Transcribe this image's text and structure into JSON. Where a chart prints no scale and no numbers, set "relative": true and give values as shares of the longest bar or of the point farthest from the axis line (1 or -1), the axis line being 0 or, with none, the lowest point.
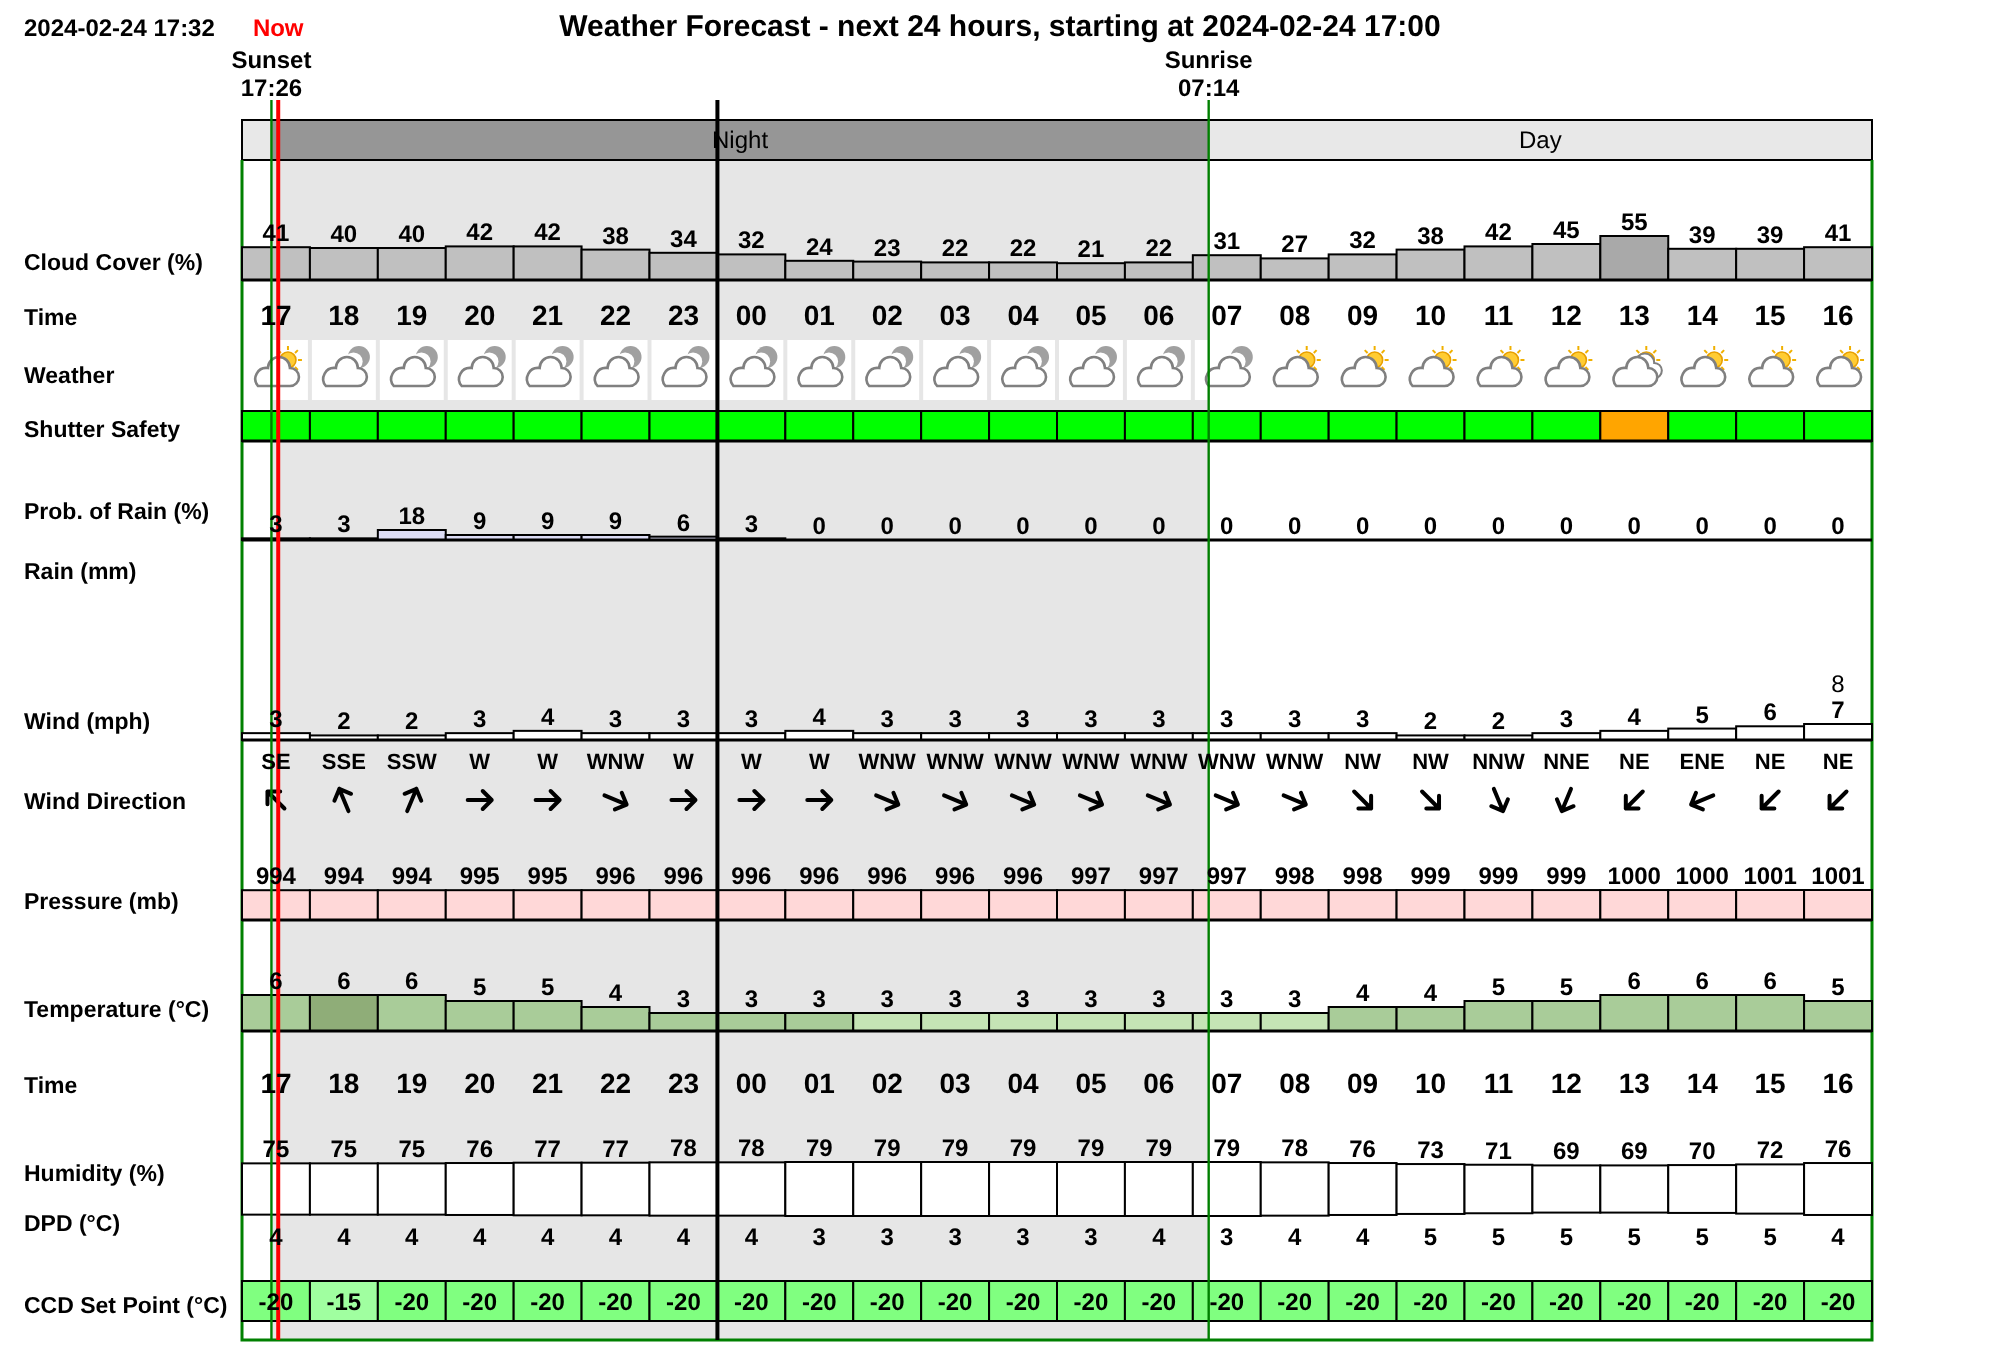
{
  "chart_data": [
    {
      "type": "bar",
      "title": "Weather Forecast - next 24 hours, starting at 2024-02-24 17:00",
      "annotations": [
        "2024-02-24 17:32",
        "Day",
        "Time"
      ],
      "ylabel": "Cloud Cover (%)",
      "x": [
        "2024-02-24T17:30",
        "2024-02-24T18:30",
        "2024-02-24T19:30",
        "2024-02-24T20:30",
        "2024-02-24T21:30",
        "2024-02-24T22:30",
        "2024-02-24T23:30",
        "2024-02-25T00:30",
        "2024-02-25T01:30",
        "2024-02-25T02:30",
        "2024-02-25T03:30",
        "2024-02-25T04:30",
        "2024-02-25T05:30",
        "2024-02-25T06:30",
        "2024-02-25T07:30",
        "2024-02-25T08:30",
        "2024-02-25T09:30",
        "2024-02-25T10:30",
        "2024-02-25T11:30",
        "2024-02-25T12:30",
        "2024-02-25T13:30",
        "2024-02-25T14:30",
        "2024-02-25T15:30",
        "2024-02-25T16:30"
      ],
      "xlim": [
        "2024-02-24T17:00",
        "2024-02-25T17:00"
      ],
      "xticks": [
        {
          "value": "2024-02-24T17:30",
          "label": "17"
        },
        {
          "value": "2024-02-24T18:30",
          "label": "18"
        },
        {
          "value": "2024-02-24T19:30",
          "label": "19"
        },
        {
          "value": "2024-02-24T20:30",
          "label": "20"
        },
        {
          "value": "2024-02-24T21:30",
          "label": "21"
        },
        {
          "value": "2024-02-24T22:30",
          "label": "22"
        },
        {
          "value": "2024-02-24T23:30",
          "label": "23"
        },
        {
          "value": "2024-02-25T00:30",
          "label": "00"
        },
        {
          "value": "2024-02-25T01:30",
          "label": "01"
        },
        {
          "value": "2024-02-25T02:30",
          "label": "02"
        },
        {
          "value": "2024-02-25T03:30",
          "label": "03"
        },
        {
          "value": "2024-02-25T04:30",
          "label": "04"
        },
        {
          "value": "2024-02-25T05:30",
          "label": "05"
        },
        {
          "value": "2024-02-25T06:30",
          "label": "06"
        },
        {
          "value": "2024-02-25T07:30",
          "label": "07"
        },
        {
          "value": "2024-02-25T08:30",
          "label": "08"
        },
        {
          "value": "2024-02-25T09:30",
          "label": "09"
        },
        {
          "value": "2024-02-25T10:30",
          "label": "10"
        },
        {
          "value": "2024-02-25T11:30",
          "label": "11"
        },
        {
          "value": "2024-02-25T12:30",
          "label": "12"
        },
        {
          "value": "2024-02-25T13:30",
          "label": "13"
        },
        {
          "value": "2024-02-25T14:30",
          "label": "14"
        },
        {
          "value": "2024-02-25T15:30",
          "label": "15"
        },
        {
          "value": "2024-02-25T16:30",
          "label": "16"
        }
      ],
      "tick_labels": "x",
      "values": [
        41,
        40,
        40,
        42,
        42,
        38,
        34,
        32,
        24,
        23,
        22,
        22,
        21,
        22,
        31,
        27,
        32,
        38,
        42,
        45,
        55,
        39,
        39,
        41
      ],
      "colors": [
        "#c0c0c0",
        "#c0c0c0",
        "#c0c0c0",
        "#c0c0c0",
        "#c0c0c0",
        "#c0c0c0",
        "#c0c0c0",
        "#c0c0c0",
        "#c0c0c0",
        "#c0c0c0",
        "#c0c0c0",
        "#c0c0c0",
        "#c0c0c0",
        "#c0c0c0",
        "#c0c0c0",
        "#c0c0c0",
        "#c0c0c0",
        "#c0c0c0",
        "#c0c0c0",
        "#c0c0c0",
        "#a9a9a9",
        "#c0c0c0",
        "#c0c0c0",
        "#c0c0c0"
      ],
      "data_labels": true,
      "bands": [
        {
          "axis": "x",
          "from": "2024-02-24T17:26",
          "to": "2024-02-25T07:14",
          "label": "Night",
          "color": "#e6e6e6"
        }
      ],
      "ref_lines": [
        {
          "axis": "x",
          "value": "2024-02-24T17:26",
          "label": "Sunset 17:26",
          "color": "#008000"
        },
        {
          "axis": "x",
          "value": "2024-02-25T00:00",
          "color": "#000000"
        },
        {
          "axis": "x",
          "value": "2024-02-25T07:14",
          "label": "Sunrise 07:14",
          "color": "#008000"
        },
        {
          "axis": "x",
          "value": "2024-02-24T17:32",
          "label": "Now",
          "color": "#ff0000"
        }
      ]
    },
    {
      "type": "other",
      "ylabel": "Weather",
      "categories": [
        null,
        null,
        null,
        null,
        null,
        null,
        null,
        null,
        null,
        null,
        null,
        null,
        null,
        null,
        null,
        null,
        null,
        null,
        null,
        null,
        null,
        null,
        null,
        null
      ]
    },
    {
      "type": "bar",
      "ylabel": "Shutter Safety",
      "relative": true,
      "categories": [
        null,
        null,
        null,
        null,
        null,
        null,
        null,
        null,
        null,
        null,
        null,
        null,
        null,
        null,
        null,
        null,
        null,
        null,
        null,
        null,
        null,
        null,
        null,
        null
      ],
      "tick_labels": false,
      "values": [
        1,
        1,
        1,
        1,
        1,
        1,
        1,
        1,
        1,
        1,
        1,
        1,
        1,
        1,
        1,
        1,
        1,
        1,
        1,
        1,
        1,
        1,
        1,
        1
      ],
      "colors": [
        "#00ff00",
        "#00ff00",
        "#00ff00",
        "#00ff00",
        "#00ff00",
        "#00ff00",
        "#00ff00",
        "#00ff00",
        "#00ff00",
        "#00ff00",
        "#00ff00",
        "#00ff00",
        "#00ff00",
        "#00ff00",
        "#00ff00",
        "#00ff00",
        "#00ff00",
        "#00ff00",
        "#00ff00",
        "#00ff00",
        "#ffa500",
        "#00ff00",
        "#00ff00",
        "#00ff00"
      ]
    },
    {
      "type": "bar",
      "ylabel": "Prob. of Rain (%)",
      "categories": [
        null,
        null,
        null,
        null,
        null,
        null,
        null,
        null,
        null,
        null,
        null,
        null,
        null,
        null,
        null,
        null,
        null,
        null,
        null,
        null,
        null,
        null,
        null,
        null
      ],
      "tick_labels": false,
      "values": [
        3,
        3,
        18,
        9,
        9,
        9,
        6,
        3,
        0,
        0,
        0,
        0,
        0,
        0,
        0,
        0,
        0,
        0,
        0,
        0,
        0,
        0,
        0,
        0
      ],
      "color": "#dcdcf5",
      "data_labels": true
    },
    {
      "type": "other",
      "ylabel": "Rain (mm)"
    },
    {
      "type": "bar",
      "ylabel": "Wind (mph)",
      "annotations": [
        "8"
      ],
      "categories": [
        null,
        null,
        null,
        null,
        null,
        null,
        null,
        null,
        null,
        null,
        null,
        null,
        null,
        null,
        null,
        null,
        null,
        null,
        null,
        null,
        null,
        null,
        null,
        null
      ],
      "tick_labels": false,
      "values": [
        3,
        2,
        2,
        3,
        4,
        3,
        3,
        3,
        4,
        3,
        3,
        3,
        3,
        3,
        3,
        3,
        3,
        2,
        2,
        3,
        4,
        5,
        6,
        7
      ],
      "color": "#ffffff",
      "data_labels": true
    },
    {
      "type": "other",
      "ylabel": "Wind Direction",
      "categories": [
        null,
        null,
        null,
        null,
        null,
        null,
        null,
        null,
        null,
        null,
        null,
        null,
        null,
        null,
        null,
        null,
        null,
        null,
        null,
        null,
        null,
        null,
        null,
        null
      ],
      "values": [
        135,
        157.5,
        202.5,
        270,
        270,
        292.5,
        270,
        270,
        270,
        292.5,
        292.5,
        292.5,
        292.5,
        292.5,
        292.5,
        292.5,
        315,
        315,
        337.5,
        22.5,
        45,
        67.5,
        45,
        45
      ],
      "value_labels": [
        "SE",
        "SSE",
        "SSW",
        "W",
        "W",
        "WNW",
        "W",
        "W",
        "W",
        "WNW",
        "WNW",
        "WNW",
        "WNW",
        "WNW",
        "WNW",
        "WNW",
        "NW",
        "NW",
        "NNW",
        "NNE",
        "NE",
        "ENE",
        "NE",
        "NE"
      ]
    },
    {
      "type": "bar",
      "ylabel": "Pressure (mb)",
      "categories": [
        null,
        null,
        null,
        null,
        null,
        null,
        null,
        null,
        null,
        null,
        null,
        null,
        null,
        null,
        null,
        null,
        null,
        null,
        null,
        null,
        null,
        null,
        null,
        null
      ],
      "tick_labels": false,
      "values": [
        994,
        994,
        994,
        995,
        995,
        996,
        996,
        996,
        996,
        996,
        996,
        996,
        997,
        997,
        997,
        998,
        998,
        999,
        999,
        999,
        1000,
        1000,
        1001,
        1001
      ],
      "color": "#ffd8d8",
      "data_labels": true
    },
    {
      "type": "bar",
      "ylabel": "Temperature (°C)",
      "annotations": [
        "Time"
      ],
      "x": [
        "2024-02-24T17:30",
        "2024-02-24T18:30",
        "2024-02-24T19:30",
        "2024-02-24T20:30",
        "2024-02-24T21:30",
        "2024-02-24T22:30",
        "2024-02-24T23:30",
        "2024-02-25T00:30",
        "2024-02-25T01:30",
        "2024-02-25T02:30",
        "2024-02-25T03:30",
        "2024-02-25T04:30",
        "2024-02-25T05:30",
        "2024-02-25T06:30",
        "2024-02-25T07:30",
        "2024-02-25T08:30",
        "2024-02-25T09:30",
        "2024-02-25T10:30",
        "2024-02-25T11:30",
        "2024-02-25T12:30",
        "2024-02-25T13:30",
        "2024-02-25T14:30",
        "2024-02-25T15:30",
        "2024-02-25T16:30"
      ],
      "xlim": [
        "2024-02-24T17:00",
        "2024-02-25T17:00"
      ],
      "xticks": [
        {
          "value": "2024-02-24T17:30",
          "label": "17"
        },
        {
          "value": "2024-02-24T18:30",
          "label": "18"
        },
        {
          "value": "2024-02-24T19:30",
          "label": "19"
        },
        {
          "value": "2024-02-24T20:30",
          "label": "20"
        },
        {
          "value": "2024-02-24T21:30",
          "label": "21"
        },
        {
          "value": "2024-02-24T22:30",
          "label": "22"
        },
        {
          "value": "2024-02-24T23:30",
          "label": "23"
        },
        {
          "value": "2024-02-25T00:30",
          "label": "00"
        },
        {
          "value": "2024-02-25T01:30",
          "label": "01"
        },
        {
          "value": "2024-02-25T02:30",
          "label": "02"
        },
        {
          "value": "2024-02-25T03:30",
          "label": "03"
        },
        {
          "value": "2024-02-25T04:30",
          "label": "04"
        },
        {
          "value": "2024-02-25T05:30",
          "label": "05"
        },
        {
          "value": "2024-02-25T06:30",
          "label": "06"
        },
        {
          "value": "2024-02-25T07:30",
          "label": "07"
        },
        {
          "value": "2024-02-25T08:30",
          "label": "08"
        },
        {
          "value": "2024-02-25T09:30",
          "label": "09"
        },
        {
          "value": "2024-02-25T10:30",
          "label": "10"
        },
        {
          "value": "2024-02-25T11:30",
          "label": "11"
        },
        {
          "value": "2024-02-25T12:30",
          "label": "12"
        },
        {
          "value": "2024-02-25T13:30",
          "label": "13"
        },
        {
          "value": "2024-02-25T14:30",
          "label": "14"
        },
        {
          "value": "2024-02-25T15:30",
          "label": "15"
        },
        {
          "value": "2024-02-25T16:30",
          "label": "16"
        }
      ],
      "tick_labels": "x",
      "values": [
        6,
        6,
        6,
        5,
        5,
        4,
        3,
        3,
        3,
        3,
        3,
        3,
        3,
        3,
        3,
        3,
        4,
        4,
        5,
        5,
        6,
        6,
        6,
        5
      ],
      "colors": [
        "#a9cc99",
        "#8fad78",
        "#a9cc99",
        "#a9cc99",
        "#a9cc99",
        "#a9cc99",
        "#a9cc99",
        "#a9cc99",
        "#a9cc99",
        "#c5e4b5",
        "#c5e4b5",
        "#c5e4b5",
        "#c5e4b5",
        "#c5e4b5",
        "#c5e4b5",
        "#c5e4b5",
        "#a9cc99",
        "#a9cc99",
        "#a9cc99",
        "#a9cc99",
        "#a9cc99",
        "#a9cc99",
        "#a9cc99",
        "#a9cc99"
      ],
      "data_labels": true
    },
    {
      "type": "bar",
      "ylabel": "Humidity (%)",
      "categories": [
        null,
        null,
        null,
        null,
        null,
        null,
        null,
        null,
        null,
        null,
        null,
        null,
        null,
        null,
        null,
        null,
        null,
        null,
        null,
        null,
        null,
        null,
        null,
        null
      ],
      "tick_labels": false,
      "values": [
        75,
        75,
        75,
        76,
        77,
        77,
        78,
        78,
        79,
        79,
        79,
        79,
        79,
        79,
        79,
        78,
        76,
        73,
        71,
        69,
        69,
        70,
        72,
        76
      ],
      "color": "#ffffff",
      "data_labels": true
    },
    {
      "type": "other",
      "ylabel": "DPD (°C)",
      "categories": [
        null,
        null,
        null,
        null,
        null,
        null,
        null,
        null,
        null,
        null,
        null,
        null,
        null,
        null,
        null,
        null,
        null,
        null,
        null,
        null,
        null,
        null,
        null,
        null
      ],
      "values": [
        4,
        4,
        4,
        4,
        4,
        4,
        4,
        4,
        3,
        3,
        3,
        3,
        3,
        4,
        3,
        4,
        4,
        5,
        5,
        5,
        5,
        5,
        5,
        4
      ],
      "data_labels": true
    },
    {
      "type": "other",
      "ylabel": "CCD Set Point (°C)",
      "categories": [
        null,
        null,
        null,
        null,
        null,
        null,
        null,
        null,
        null,
        null,
        null,
        null,
        null,
        null,
        null,
        null,
        null,
        null,
        null,
        null,
        null,
        null,
        null,
        null
      ],
      "values": [
        -20,
        -15,
        -20,
        -20,
        -20,
        -20,
        -20,
        -20,
        -20,
        -20,
        -20,
        -20,
        -20,
        -20,
        -20,
        -20,
        -20,
        -20,
        -20,
        -20,
        -20,
        -20,
        -20,
        -20
      ],
      "colors": [
        "#80ff80",
        "#a0ffa0",
        "#80ff80",
        "#80ff80",
        "#80ff80",
        "#80ff80",
        "#80ff80",
        "#80ff80",
        "#80ff80",
        "#80ff80",
        "#80ff80",
        "#80ff80",
        "#80ff80",
        "#80ff80",
        "#80ff80",
        "#80ff80",
        "#80ff80",
        "#80ff80",
        "#80ff80",
        "#80ff80",
        "#80ff80",
        "#80ff80",
        "#80ff80",
        "#80ff80"
      ],
      "data_labels": true
    }
  ]
}
